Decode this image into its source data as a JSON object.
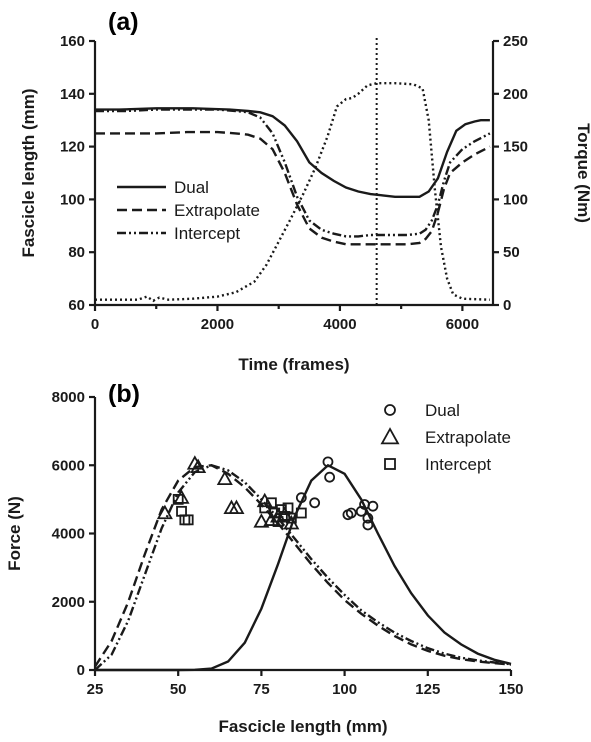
{
  "chart_data": [
    {
      "type": "line",
      "panel_label": "(a)",
      "xlabel": "Time (frames)",
      "ylabel": "Fascicle length (mm)",
      "y2label": "Torque (Nm)",
      "xlim": [
        0,
        6500
      ],
      "ylim": [
        60,
        160
      ],
      "y2lim": [
        0,
        250
      ],
      "xticks": [
        "0",
        "2000",
        "4000",
        "6000"
      ],
      "yticks": [
        "60",
        "80",
        "100",
        "120",
        "140",
        "160"
      ],
      "y2ticks": [
        "0",
        "50",
        "100",
        "150",
        "200",
        "250"
      ],
      "vline_x": 4600,
      "legend_position": "center-left",
      "series": [
        {
          "name": "Dual",
          "style": "solid",
          "axis": "left",
          "x": [
            0,
            400,
            1000,
            1600,
            2200,
            2500,
            2700,
            2900,
            3100,
            3300,
            3500,
            3700,
            3900,
            4100,
            4300,
            4500,
            4700,
            4900,
            5100,
            5300,
            5450,
            5600,
            5750,
            5900,
            6050,
            6200,
            6300,
            6450
          ],
          "y": [
            134,
            134,
            134.5,
            134.5,
            134,
            133.5,
            133,
            131.5,
            128,
            122,
            114,
            110,
            107,
            104.5,
            103,
            102,
            101.5,
            101,
            101,
            101,
            103,
            108,
            118,
            126,
            128.5,
            129.5,
            130,
            130
          ]
        },
        {
          "name": "Extrapolate",
          "style": "dashed",
          "axis": "left",
          "x": [
            0,
            500,
            1000,
            1500,
            2000,
            2300,
            2500,
            2700,
            2900,
            3100,
            3300,
            3500,
            3700,
            3900,
            4100,
            4300,
            4500,
            4700,
            4900,
            5100,
            5300,
            5400,
            5500,
            5600,
            5700,
            5800,
            6000,
            6200,
            6450
          ],
          "y": [
            125,
            125,
            125,
            125.5,
            125.5,
            125,
            124.5,
            123,
            119,
            110,
            98,
            89,
            85.5,
            84,
            83,
            83,
            83,
            83,
            83,
            83,
            83.5,
            85,
            88,
            95,
            104,
            110,
            114,
            117,
            120
          ]
        },
        {
          "name": "Intercept",
          "style": "dashdotdot",
          "axis": "left",
          "x": [
            0,
            500,
            1000,
            1500,
            2000,
            2300,
            2500,
            2700,
            2900,
            3100,
            3300,
            3500,
            3700,
            3900,
            4100,
            4300,
            4500,
            4700,
            4900,
            5100,
            5300,
            5400,
            5500,
            5600,
            5700,
            5800,
            6000,
            6200,
            6450
          ],
          "y": [
            133.5,
            133.5,
            134,
            134,
            134,
            133.5,
            133,
            131,
            125,
            114,
            101,
            92,
            88.5,
            87,
            86,
            86,
            86.5,
            86.5,
            86.5,
            86.5,
            87,
            88.5,
            92,
            98,
            107,
            114,
            119,
            122,
            125
          ]
        },
        {
          "name": "Torque",
          "style": "dotted",
          "axis": "right",
          "x": [
            0,
            700,
            850,
            950,
            1050,
            1200,
            1600,
            2000,
            2300,
            2600,
            2800,
            3000,
            3200,
            3400,
            3600,
            3800,
            3950,
            4100,
            4200,
            4300,
            4450,
            4600,
            4900,
            5200,
            5350,
            5450,
            5550,
            5650,
            5750,
            5850,
            6000,
            6450
          ],
          "y": [
            5,
            5,
            8,
            4,
            7,
            5,
            6,
            8,
            12,
            22,
            38,
            60,
            82,
            105,
            130,
            160,
            188,
            195,
            196,
            200,
            208,
            210,
            210,
            209,
            205,
            175,
            110,
            55,
            25,
            10,
            6,
            5
          ]
        }
      ]
    },
    {
      "type": "scatter",
      "panel_label": "(b)",
      "xlabel": "Fascicle length (mm)",
      "ylabel": "Force (N)",
      "xlim": [
        25,
        150
      ],
      "ylim": [
        0,
        8000
      ],
      "xticks": [
        "25",
        "50",
        "75",
        "100",
        "125",
        "150"
      ],
      "yticks": [
        "0",
        "2000",
        "4000",
        "6000",
        "8000"
      ],
      "legend_position": "top-right",
      "series": [
        {
          "name": "Dual",
          "marker": "circle",
          "points": [
            [
              95,
              6100
            ],
            [
              95.5,
              5650
            ],
            [
              91,
              4900
            ],
            [
              87,
              5050
            ],
            [
              101,
              4550
            ],
            [
              102,
              4600
            ],
            [
              106,
              4850
            ],
            [
              107,
              4450
            ],
            [
              107,
              4250
            ],
            [
              108.5,
              4800
            ],
            [
              105,
              4650
            ]
          ],
          "curve_style": "solid",
          "curve": {
            "x": [
              25,
              50,
              55,
              60,
              65,
              70,
              75,
              80,
              85,
              90,
              95,
              100,
              105,
              110,
              115,
              120,
              125,
              130,
              135,
              140,
              145,
              150
            ],
            "y": [
              0,
              0,
              5,
              40,
              250,
              800,
              1800,
              3100,
              4500,
              5550,
              6000,
              5750,
              5000,
              4000,
              3050,
              2250,
              1600,
              1100,
              750,
              480,
              300,
              180
            ]
          }
        },
        {
          "name": "Extrapolate",
          "marker": "triangle",
          "points": [
            [
              55,
              6050
            ],
            [
              56,
              5950
            ],
            [
              46,
              4600
            ],
            [
              51,
              5050
            ],
            [
              64,
              5600
            ],
            [
              66,
              4750
            ],
            [
              67.5,
              4750
            ],
            [
              76,
              4950
            ],
            [
              78,
              4400
            ],
            [
              80,
              4500
            ],
            [
              82,
              4550
            ],
            [
              75,
              4350
            ],
            [
              84,
              4300
            ]
          ],
          "curve_style": "dashed",
          "curve": {
            "x": [
              25,
              30,
              35,
              40,
              45,
              50,
              55,
              60,
              65,
              70,
              75,
              80,
              85,
              90,
              95,
              100,
              105,
              110,
              115,
              120,
              125,
              130,
              135,
              140,
              145,
              150
            ],
            "y": [
              100,
              850,
              2000,
              3400,
              4700,
              5550,
              5950,
              6000,
              5750,
              5350,
              4850,
              4300,
              3700,
              3100,
              2550,
              2050,
              1650,
              1300,
              1000,
              750,
              560,
              420,
              320,
              250,
              200,
              160
            ]
          }
        },
        {
          "name": "Intercept",
          "marker": "square",
          "points": [
            [
              50,
              5000
            ],
            [
              51,
              4650
            ],
            [
              52,
              4400
            ],
            [
              53,
              4400
            ],
            [
              76,
              4750
            ],
            [
              78,
              4900
            ],
            [
              79,
              4600
            ],
            [
              80,
              4350
            ],
            [
              81,
              4700
            ],
            [
              82,
              4500
            ],
            [
              83,
              4750
            ],
            [
              84,
              4450
            ],
            [
              87,
              4600
            ]
          ],
          "curve_style": "dashdotdot",
          "curve": {
            "x": [
              25,
              30,
              35,
              40,
              45,
              50,
              55,
              60,
              65,
              70,
              75,
              80,
              85,
              90,
              95,
              100,
              105,
              110,
              115,
              120,
              125,
              130,
              135,
              140,
              145,
              150
            ],
            "y": [
              0,
              450,
              1450,
              2800,
              4150,
              5200,
              5800,
              6000,
              5850,
              5500,
              5000,
              4450,
              3850,
              3250,
              2700,
              2200,
              1750,
              1400,
              1100,
              850,
              640,
              480,
              360,
              280,
              220,
              170
            ]
          }
        }
      ]
    }
  ]
}
